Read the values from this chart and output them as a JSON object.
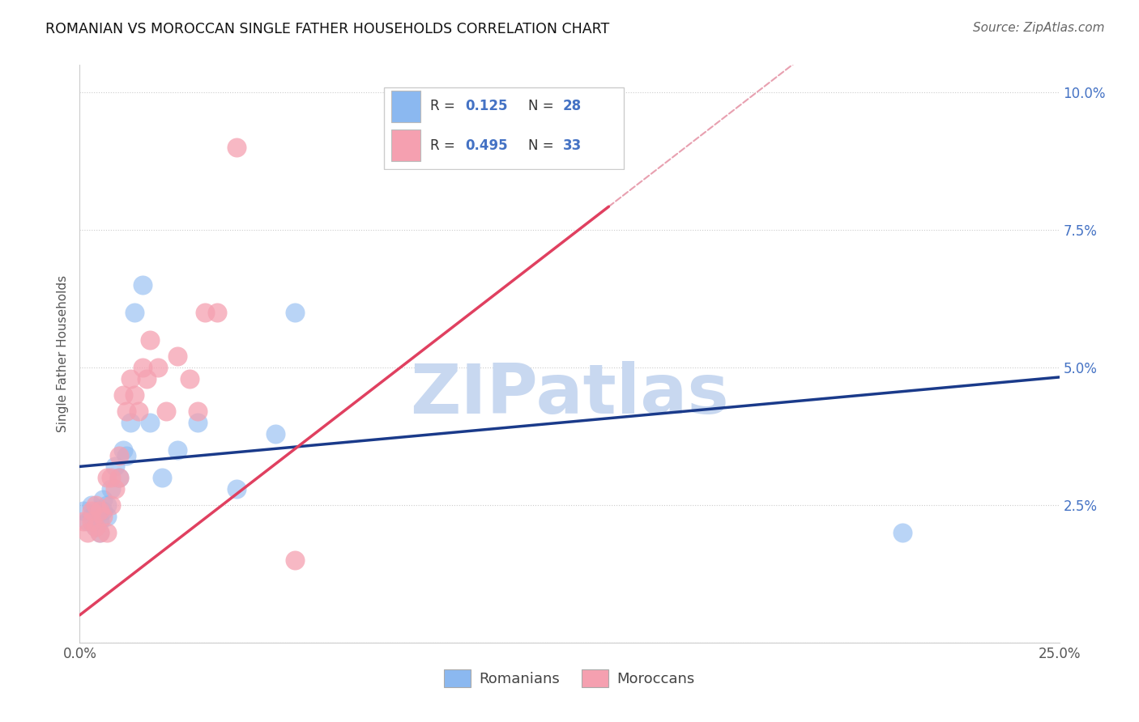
{
  "title": "ROMANIAN VS MOROCCAN SINGLE FATHER HOUSEHOLDS CORRELATION CHART",
  "source": "Source: ZipAtlas.com",
  "ylabel": "Single Father Households",
  "xlim": [
    0.0,
    0.25
  ],
  "ylim": [
    0.0,
    0.105
  ],
  "xticks": [
    0.0,
    0.05,
    0.1,
    0.15,
    0.2,
    0.25
  ],
  "yticks": [
    0.0,
    0.025,
    0.05,
    0.075,
    0.1
  ],
  "xtick_labels": [
    "0.0%",
    "",
    "",
    "",
    "",
    "25.0%"
  ],
  "ytick_labels": [
    "",
    "2.5%",
    "5.0%",
    "7.5%",
    "10.0%"
  ],
  "R_romanian": "0.125",
  "N_romanian": "28",
  "R_moroccan": "0.495",
  "N_moroccan": "33",
  "romanians_x": [
    0.001,
    0.002,
    0.003,
    0.003,
    0.004,
    0.004,
    0.005,
    0.005,
    0.006,
    0.006,
    0.007,
    0.007,
    0.008,
    0.009,
    0.01,
    0.011,
    0.012,
    0.013,
    0.014,
    0.016,
    0.018,
    0.021,
    0.025,
    0.03,
    0.04,
    0.05,
    0.055,
    0.21
  ],
  "romanians_y": [
    0.024,
    0.022,
    0.023,
    0.025,
    0.021,
    0.024,
    0.02,
    0.022,
    0.024,
    0.026,
    0.023,
    0.025,
    0.028,
    0.032,
    0.03,
    0.035,
    0.034,
    0.04,
    0.06,
    0.065,
    0.04,
    0.03,
    0.035,
    0.04,
    0.028,
    0.038,
    0.06,
    0.02
  ],
  "moroccans_x": [
    0.001,
    0.002,
    0.003,
    0.003,
    0.004,
    0.004,
    0.005,
    0.005,
    0.006,
    0.007,
    0.007,
    0.008,
    0.008,
    0.009,
    0.01,
    0.01,
    0.011,
    0.012,
    0.013,
    0.014,
    0.015,
    0.016,
    0.017,
    0.018,
    0.02,
    0.022,
    0.025,
    0.028,
    0.03,
    0.032,
    0.035,
    0.04,
    0.055
  ],
  "moroccans_y": [
    0.022,
    0.02,
    0.022,
    0.024,
    0.021,
    0.025,
    0.02,
    0.024,
    0.023,
    0.02,
    0.03,
    0.025,
    0.03,
    0.028,
    0.03,
    0.034,
    0.045,
    0.042,
    0.048,
    0.045,
    0.042,
    0.05,
    0.048,
    0.055,
    0.05,
    0.042,
    0.052,
    0.048,
    0.042,
    0.06,
    0.06,
    0.09,
    0.015
  ],
  "blue_scatter_color": "#8BB8F0",
  "pink_scatter_color": "#F5A0B0",
  "blue_line_color": "#1A3A8A",
  "pink_line_color": "#E04060",
  "pink_dash_color": "#E8A0B0",
  "watermark_color": "#C8D8F0",
  "grid_color": "#CCCCCC",
  "title_color": "#111111",
  "source_color": "#666666",
  "ytick_color": "#4472C4",
  "xtick_color": "#555555",
  "ylabel_color": "#555555",
  "legend_label_color": "#333333",
  "legend_value_color": "#4472C4",
  "blue_reg_intercept": 0.032,
  "blue_reg_slope": 0.065,
  "pink_reg_intercept": 0.005,
  "pink_reg_slope": 0.55
}
